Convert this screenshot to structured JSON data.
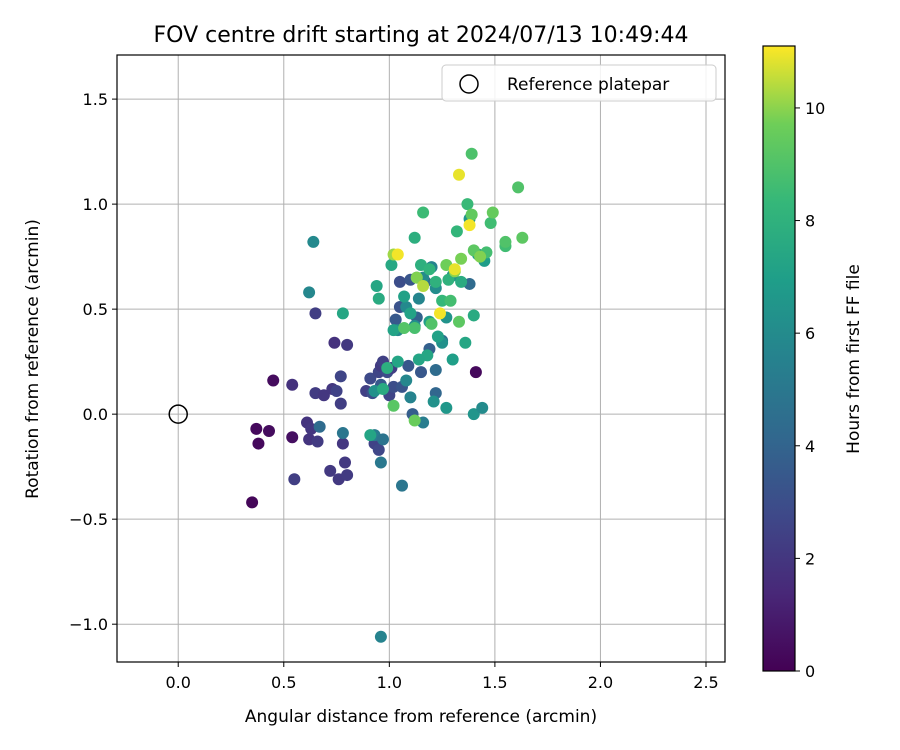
{
  "chart_data": {
    "type": "scatter",
    "title": "FOV centre drift starting at 2024/07/13 10:49:44",
    "xlabel": "Angular distance from reference (arcmin)",
    "ylabel": "Rotation from reference (arcmin)",
    "xlim": [
      -0.29,
      2.59
    ],
    "ylim": [
      -1.18,
      1.71
    ],
    "xticks": [
      0.0,
      0.5,
      1.0,
      1.5,
      2.0,
      2.5
    ],
    "xtick_labels": [
      "0.0",
      "0.5",
      "1.0",
      "1.5",
      "2.0",
      "2.5"
    ],
    "yticks": [
      -1.0,
      -0.5,
      0.0,
      0.5,
      1.0,
      1.5
    ],
    "ytick_labels": [
      "−1.0",
      "−0.5",
      "0.0",
      "0.5",
      "1.0",
      "1.5"
    ],
    "grid": true,
    "colormap": "viridis",
    "colorbar": {
      "label": "Hours from first FF file",
      "range": [
        0,
        11.1
      ],
      "ticks": [
        0,
        2,
        4,
        6,
        8,
        10
      ],
      "tick_labels": [
        "0",
        "2",
        "4",
        "6",
        "8",
        "10"
      ]
    },
    "legend": {
      "position": "top-right",
      "label": "Reference platepar"
    },
    "reference_point": {
      "x": 0.0,
      "y": 0.0,
      "marker": "open-circle"
    },
    "points": [
      [
        0.35,
        -0.42,
        0.2
      ],
      [
        0.37,
        -0.07,
        0.3
      ],
      [
        0.38,
        -0.14,
        0.3
      ],
      [
        0.43,
        -0.08,
        0.4
      ],
      [
        0.45,
        0.16,
        0.4
      ],
      [
        0.54,
        -0.11,
        0.5
      ],
      [
        1.41,
        0.2,
        0.3
      ],
      [
        0.54,
        0.14,
        1.8
      ],
      [
        0.55,
        -0.31,
        2.3
      ],
      [
        0.61,
        -0.04,
        1.9
      ],
      [
        0.62,
        -0.12,
        1.9
      ],
      [
        0.63,
        -0.07,
        2.0
      ],
      [
        0.65,
        0.1,
        2.2
      ],
      [
        0.65,
        0.48,
        2.3
      ],
      [
        0.66,
        -0.13,
        2.2
      ],
      [
        0.69,
        0.09,
        2.0
      ],
      [
        0.72,
        -0.27,
        2.1
      ],
      [
        0.73,
        0.12,
        2.0
      ],
      [
        0.74,
        0.34,
        1.8
      ],
      [
        0.75,
        0.11,
        2.5
      ],
      [
        0.76,
        -0.31,
        2.1
      ],
      [
        0.77,
        0.05,
        2.3
      ],
      [
        0.77,
        0.18,
        2.6
      ],
      [
        0.78,
        -0.14,
        2.0
      ],
      [
        0.79,
        -0.23,
        2.1
      ],
      [
        0.8,
        0.33,
        2.1
      ],
      [
        0.8,
        -0.29,
        2.2
      ],
      [
        0.89,
        0.11,
        2.4
      ],
      [
        0.91,
        0.17,
        2.8
      ],
      [
        0.92,
        0.1,
        3.0
      ],
      [
        0.93,
        -0.14,
        2.5
      ],
      [
        0.95,
        -0.17,
        2.7
      ],
      [
        0.95,
        0.2,
        2.6
      ],
      [
        0.96,
        0.14,
        3.5
      ],
      [
        0.96,
        0.23,
        2.2
      ],
      [
        0.97,
        0.25,
        2.4
      ],
      [
        0.99,
        0.2,
        2.9
      ],
      [
        1.0,
        0.09,
        2.6
      ],
      [
        1.01,
        0.22,
        2.3
      ],
      [
        1.02,
        0.13,
        3.0
      ],
      [
        1.03,
        0.45,
        3.5
      ],
      [
        1.05,
        0.63,
        3.0
      ],
      [
        1.05,
        0.51,
        3.2
      ],
      [
        1.06,
        0.13,
        3.3
      ],
      [
        1.09,
        0.23,
        3.4
      ],
      [
        1.1,
        0.64,
        3.3
      ],
      [
        1.11,
        0.0,
        3.7
      ],
      [
        1.13,
        0.46,
        3.9
      ],
      [
        1.15,
        0.2,
        3.4
      ],
      [
        1.17,
        0.63,
        4.2
      ],
      [
        1.19,
        0.31,
        3.8
      ],
      [
        1.22,
        0.1,
        4.1
      ],
      [
        1.22,
        0.21,
        4.4
      ],
      [
        1.25,
        0.35,
        4.5
      ],
      [
        1.38,
        0.62,
        4.3
      ],
      [
        0.67,
        -0.06,
        4.4
      ],
      [
        0.78,
        -0.09,
        4.9
      ],
      [
        0.93,
        -0.1,
        5.2
      ],
      [
        0.96,
        -0.23,
        5.0
      ],
      [
        0.97,
        -0.12,
        4.8
      ],
      [
        1.06,
        -0.34,
        4.9
      ],
      [
        1.16,
        -0.04,
        5.3
      ],
      [
        1.1,
        0.08,
        5.6
      ],
      [
        1.08,
        0.16,
        5.8
      ],
      [
        1.04,
        0.4,
        5.8
      ],
      [
        1.08,
        0.51,
        5.9
      ],
      [
        1.12,
        0.42,
        6.2
      ],
      [
        1.14,
        0.55,
        5.7
      ],
      [
        1.16,
        0.65,
        6.0
      ],
      [
        1.2,
        0.7,
        5.6
      ],
      [
        1.22,
        0.6,
        6.1
      ],
      [
        1.25,
        0.34,
        6.3
      ],
      [
        1.27,
        0.46,
        6.4
      ],
      [
        1.3,
        0.66,
        6.2
      ],
      [
        1.4,
        0.0,
        6.5
      ],
      [
        1.44,
        0.03,
        6.0
      ],
      [
        0.64,
        0.82,
        5.9
      ],
      [
        0.62,
        0.58,
        5.8
      ],
      [
        0.96,
        -1.06,
        5.6
      ],
      [
        0.93,
        0.11,
        6.3
      ],
      [
        1.27,
        0.03,
        6.6
      ],
      [
        1.21,
        0.06,
        6.3
      ],
      [
        1.38,
        0.93,
        6.5
      ],
      [
        1.42,
        0.76,
        6.8
      ],
      [
        1.45,
        0.73,
        6.9
      ],
      [
        1.3,
        0.26,
        7.0
      ],
      [
        1.23,
        0.37,
        7.1
      ],
      [
        1.19,
        0.44,
        7.0
      ],
      [
        1.18,
        0.28,
        7.4
      ],
      [
        1.14,
        0.26,
        7.3
      ],
      [
        1.1,
        0.48,
        7.2
      ],
      [
        1.07,
        0.56,
        7.1
      ],
      [
        1.04,
        0.25,
        7.3
      ],
      [
        1.02,
        0.4,
        7.2
      ],
      [
        1.01,
        0.71,
        7.5
      ],
      [
        0.99,
        0.22,
        7.8
      ],
      [
        0.97,
        0.12,
        7.6
      ],
      [
        0.95,
        0.55,
        7.6
      ],
      [
        0.94,
        0.61,
        7.4
      ],
      [
        0.91,
        -0.1,
        7.3
      ],
      [
        0.78,
        0.48,
        7.4
      ],
      [
        1.34,
        0.63,
        7.6
      ],
      [
        1.36,
        0.34,
        7.4
      ],
      [
        1.4,
        0.47,
        7.6
      ],
      [
        1.15,
        0.71,
        7.9
      ],
      [
        1.13,
        0.65,
        7.7
      ],
      [
        1.12,
        0.84,
        7.8
      ],
      [
        1.16,
        0.96,
        8.5
      ],
      [
        1.19,
        0.69,
        8.1
      ],
      [
        1.22,
        0.63,
        8.0
      ],
      [
        1.25,
        0.54,
        8.3
      ],
      [
        1.28,
        0.64,
        8.0
      ],
      [
        1.29,
        0.54,
        8.7
      ],
      [
        1.32,
        0.87,
        8.2
      ],
      [
        1.37,
        1.0,
        8.4
      ],
      [
        1.39,
        1.24,
        8.9
      ],
      [
        1.46,
        0.77,
        8.7
      ],
      [
        1.48,
        0.91,
        8.6
      ],
      [
        1.55,
        0.8,
        8.6
      ],
      [
        1.55,
        0.82,
        9.0
      ],
      [
        1.61,
        1.08,
        9.0
      ],
      [
        1.63,
        0.84,
        9.3
      ],
      [
        1.49,
        0.96,
        9.5
      ],
      [
        1.39,
        0.95,
        9.4
      ],
      [
        1.4,
        0.78,
        9.3
      ],
      [
        1.33,
        0.44,
        9.3
      ],
      [
        1.2,
        0.43,
        9.0
      ],
      [
        1.12,
        0.41,
        8.8
      ],
      [
        1.07,
        0.41,
        9.1
      ],
      [
        1.02,
        0.04,
        9.2
      ],
      [
        1.12,
        -0.03,
        9.6
      ],
      [
        1.31,
        0.68,
        10.0
      ],
      [
        1.34,
        0.74,
        9.8
      ],
      [
        1.27,
        0.71,
        9.7
      ],
      [
        1.43,
        0.75,
        9.9
      ],
      [
        1.02,
        0.76,
        10.2
      ],
      [
        1.13,
        0.65,
        9.9
      ],
      [
        1.16,
        0.61,
        10.4
      ],
      [
        1.04,
        0.76,
        11.0
      ],
      [
        1.24,
        0.48,
        11.0
      ],
      [
        1.31,
        0.69,
        10.9
      ],
      [
        1.33,
        1.14,
        10.9
      ],
      [
        1.38,
        0.9,
        11.0
      ]
    ]
  }
}
